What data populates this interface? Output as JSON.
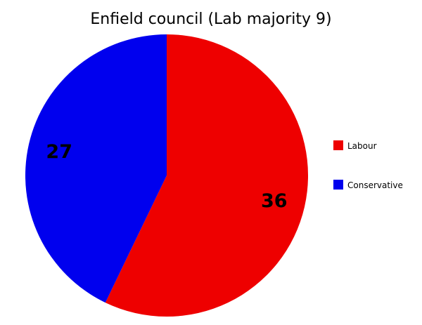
{
  "chart_data": {
    "type": "pie",
    "title": "Enfield council (Lab majority 9)",
    "slices": [
      {
        "name": "Labour",
        "value": 36,
        "color": "#ee0000"
      },
      {
        "name": "Conservative",
        "value": 27,
        "color": "#0000ee"
      }
    ],
    "start_angle_deg": 0,
    "direction": "clockwise",
    "legend_position": "right",
    "show_values": true
  }
}
